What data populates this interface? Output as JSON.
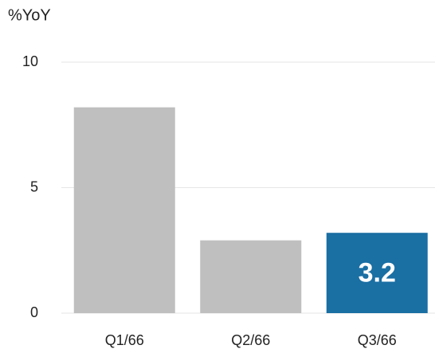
{
  "chart_data": {
    "type": "bar",
    "ylabel": "%YoY",
    "categories": [
      "Q1/66",
      "Q2/66",
      "Q3/66"
    ],
    "values": [
      8.2,
      2.9,
      3.2
    ],
    "value_labels": [
      null,
      null,
      "3.2"
    ],
    "colors": [
      "#bfbfbf",
      "#bfbfbf",
      "#1a6fa3"
    ],
    "ylim": [
      0,
      10
    ],
    "yticks": [
      0,
      5,
      10
    ],
    "grid": true
  }
}
